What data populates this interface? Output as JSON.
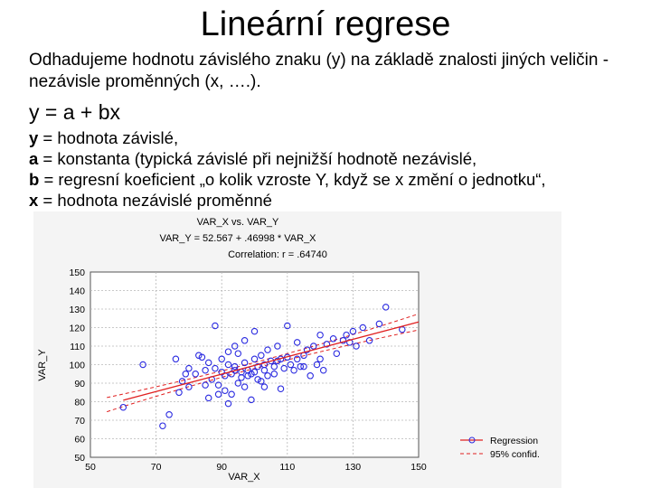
{
  "slide": {
    "title": "Lineární regrese",
    "intro": "Odhadujeme hodnotu závislého znaku (y) na základě znalosti jiných veličin - nezávisle proměnných (x, ….).",
    "formula": "y = a + bx",
    "definitions": [
      {
        "term": "y",
        "text": " = hodnota závislé,"
      },
      {
        "term": "a",
        "text": " = konstanta (typická závislé při nejnižší hodnotě nezávislé,"
      },
      {
        "term": "b",
        "text": " = regresní koeficient „o kolik vzroste Y, když se x změní o jednotku“,"
      },
      {
        "term": "x",
        "text": " = hodnota nezávislé proměnné"
      }
    ]
  },
  "chart_data": {
    "type": "scatter",
    "title": "VAR_X vs. VAR_Y",
    "equation": "VAR_Y = 52.567 + .46998 * VAR_X",
    "correlation": "Correlation: r = .64740",
    "xlabel": "VAR_X",
    "ylabel": "VAR_Y",
    "xlim": [
      50,
      150
    ],
    "ylim": [
      50,
      150
    ],
    "xticks": [
      "50",
      "70",
      "90",
      "110",
      "130",
      "150"
    ],
    "yticks": [
      "150",
      "140",
      "130",
      "120",
      "110",
      "100",
      "90",
      "80",
      "70",
      "60",
      "50"
    ],
    "grid": true,
    "legend": [
      "Regression",
      "95% confid."
    ],
    "legend_position": "bottom-right",
    "regression": {
      "intercept": 52.567,
      "slope": 0.46998
    },
    "colors": {
      "points": "#2a2ae0",
      "regression": "#e02020",
      "grid": "#b8b8b8",
      "background": "#ffffff",
      "frame": "#d0d0d0"
    },
    "points": [
      [
        60,
        77
      ],
      [
        72,
        67
      ],
      [
        74,
        73
      ],
      [
        77,
        85
      ],
      [
        78,
        91
      ],
      [
        80,
        88
      ],
      [
        82,
        95
      ],
      [
        83,
        105
      ],
      [
        84,
        104
      ],
      [
        85,
        89
      ],
      [
        85,
        97
      ],
      [
        86,
        82
      ],
      [
        87,
        92
      ],
      [
        88,
        98
      ],
      [
        88,
        121
      ],
      [
        89,
        89
      ],
      [
        90,
        96
      ],
      [
        90,
        103
      ],
      [
        91,
        94
      ],
      [
        91,
        86
      ],
      [
        92,
        100
      ],
      [
        92,
        107
      ],
      [
        93,
        95
      ],
      [
        93,
        84
      ],
      [
        94,
        97
      ],
      [
        94,
        99
      ],
      [
        95,
        106
      ],
      [
        95,
        90
      ],
      [
        96,
        96
      ],
      [
        96,
        93
      ],
      [
        97,
        101
      ],
      [
        97,
        88
      ],
      [
        98,
        94
      ],
      [
        98,
        97
      ],
      [
        99,
        95
      ],
      [
        99,
        81
      ],
      [
        100,
        103
      ],
      [
        100,
        96
      ],
      [
        101,
        92
      ],
      [
        101,
        99
      ],
      [
        102,
        105
      ],
      [
        102,
        91
      ],
      [
        103,
        100
      ],
      [
        103,
        97
      ],
      [
        104,
        108
      ],
      [
        104,
        94
      ],
      [
        105,
        102
      ],
      [
        106,
        99
      ],
      [
        106,
        95
      ],
      [
        107,
        110
      ],
      [
        108,
        103
      ],
      [
        108,
        87
      ],
      [
        109,
        98
      ],
      [
        110,
        104
      ],
      [
        110,
        121
      ],
      [
        111,
        100
      ],
      [
        112,
        97
      ],
      [
        113,
        112
      ],
      [
        113,
        103
      ],
      [
        114,
        99
      ],
      [
        115,
        105
      ],
      [
        116,
        108
      ],
      [
        117,
        94
      ],
      [
        118,
        110
      ],
      [
        119,
        100
      ],
      [
        120,
        103
      ],
      [
        121,
        97
      ],
      [
        122,
        111
      ],
      [
        124,
        114
      ],
      [
        127,
        113
      ],
      [
        128,
        116
      ],
      [
        129,
        112
      ],
      [
        130,
        118
      ],
      [
        133,
        120
      ],
      [
        135,
        113
      ],
      [
        138,
        122
      ],
      [
        140,
        131
      ],
      [
        145,
        119
      ],
      [
        66,
        100
      ],
      [
        76,
        103
      ],
      [
        80,
        98
      ],
      [
        86,
        101
      ],
      [
        89,
        84
      ],
      [
        94,
        110
      ],
      [
        97,
        113
      ],
      [
        103,
        88
      ],
      [
        107,
        102
      ],
      [
        115,
        99
      ],
      [
        120,
        116
      ],
      [
        125,
        106
      ],
      [
        131,
        110
      ],
      [
        100,
        118
      ],
      [
        79,
        95
      ],
      [
        92,
        79
      ]
    ]
  }
}
